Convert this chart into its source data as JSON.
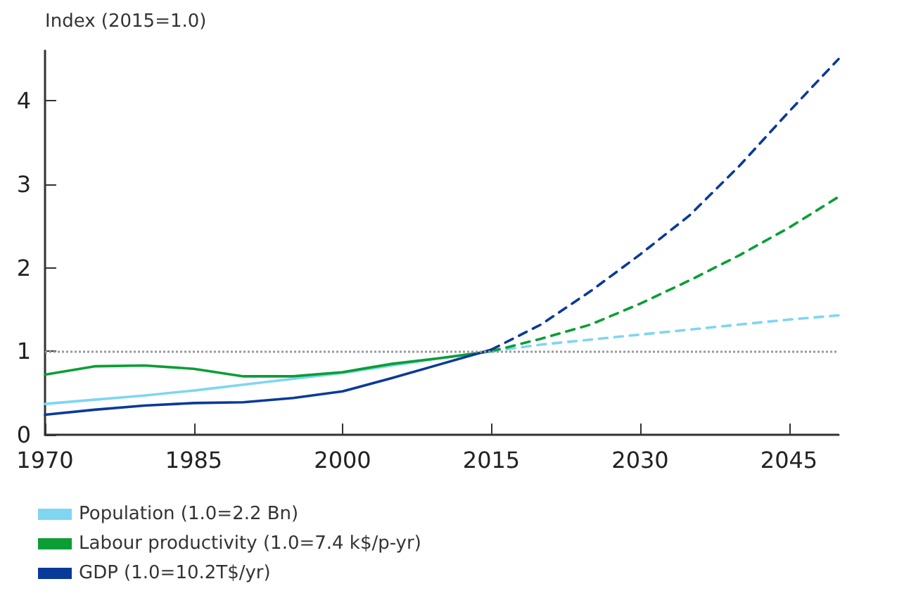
{
  "chart_data": {
    "type": "line",
    "ylabel": "Index (2015=1.0)",
    "xlim": [
      1970,
      2050
    ],
    "xticks": [
      1970,
      1985,
      2000,
      2015,
      2030,
      2045
    ],
    "ylim": [
      0,
      4.6
    ],
    "yticks": [
      0,
      1,
      2,
      3,
      4
    ],
    "grid": false,
    "legend": "bottom left",
    "marker": "none",
    "ref_lines": [
      {
        "axis": "y",
        "value": 1,
        "color": "#999999",
        "line_style": "dotted"
      }
    ],
    "series": [
      {
        "name": "Population (1.0=2.2 Bn)",
        "color": "#7fd6f0",
        "line_style": "solid",
        "x": [
          1970,
          1975,
          1980,
          1985,
          1990,
          1995,
          2000,
          2005,
          2010,
          2015
        ],
        "values": [
          0.37,
          0.42,
          0.47,
          0.53,
          0.6,
          0.67,
          0.74,
          0.83,
          0.92,
          1.0
        ]
      },
      {
        "name": "Labour productivity (1.0=7.4 k$/p-yr)",
        "color": "#0a9e35",
        "line_style": "solid",
        "x": [
          1970,
          1975,
          1980,
          1985,
          1990,
          1995,
          2000,
          2005,
          2010,
          2015
        ],
        "values": [
          0.72,
          0.82,
          0.83,
          0.79,
          0.7,
          0.7,
          0.75,
          0.85,
          0.92,
          1.0
        ]
      },
      {
        "name": "GDP (1.0=10.2T$/yr)",
        "color": "#0a3a99",
        "line_style": "solid",
        "x": [
          1970,
          1975,
          1980,
          1985,
          1990,
          1995,
          2000,
          2005,
          2010,
          2015
        ],
        "values": [
          0.24,
          0.3,
          0.35,
          0.38,
          0.39,
          0.44,
          0.52,
          0.68,
          0.85,
          1.02
        ]
      },
      {
        "color": "#7fd6f0",
        "line_style": "dashed",
        "x": [
          2015,
          2020,
          2025,
          2030,
          2035,
          2040,
          2045,
          2050
        ],
        "values": [
          1.0,
          1.08,
          1.14,
          1.2,
          1.26,
          1.32,
          1.38,
          1.43
        ]
      },
      {
        "color": "#0a9e35",
        "line_style": "dashed",
        "x": [
          2015,
          2020,
          2025,
          2030,
          2035,
          2040,
          2045,
          2050
        ],
        "values": [
          1.0,
          1.15,
          1.32,
          1.57,
          1.85,
          2.15,
          2.48,
          2.85
        ]
      },
      {
        "color": "#0a3a99",
        "line_style": "dashed",
        "x": [
          2015,
          2020,
          2025,
          2030,
          2035,
          2040,
          2045,
          2050
        ],
        "values": [
          1.02,
          1.32,
          1.72,
          2.16,
          2.63,
          3.22,
          3.87,
          4.5
        ]
      }
    ]
  }
}
